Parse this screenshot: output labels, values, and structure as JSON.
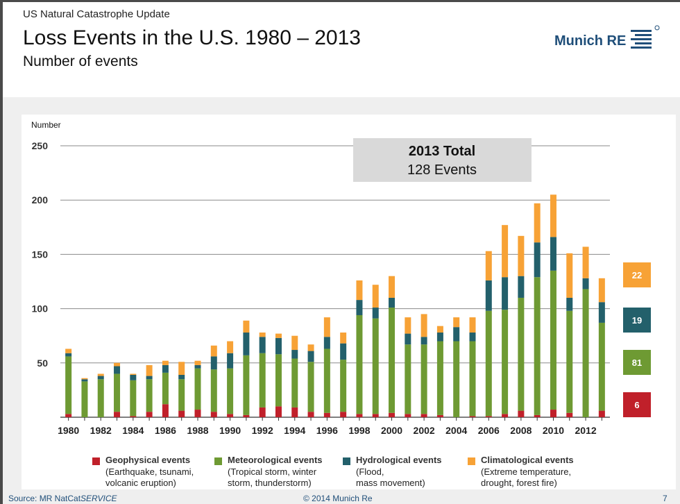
{
  "header": {
    "supertitle": "US Natural Catastrophe Update",
    "title": "Loss Events in the U.S. 1980 – 2013",
    "subtitle": "Number of events",
    "logo_text": "Munich RE"
  },
  "footer": {
    "source_prefix": "Source: MR NatCat",
    "source_italic": "SERVICE",
    "copyright": "© 2014 Munich Re",
    "page": "7"
  },
  "colors": {
    "geophysical": "#c0202a",
    "meteorological": "#6e9a33",
    "hydrological": "#23606b",
    "climatological": "#f7a236"
  },
  "total_box": {
    "title": "2013 Total",
    "sub": "128 Events"
  },
  "badges": [
    {
      "series": "climatological",
      "value": "22"
    },
    {
      "series": "hydrological",
      "value": "19"
    },
    {
      "series": "meteorological",
      "value": "81"
    },
    {
      "series": "geophysical",
      "value": "6"
    }
  ],
  "legend": [
    {
      "series": "geophysical",
      "title": "Geophysical events",
      "lines": [
        "(Earthquake, tsunami,",
        "volcanic eruption)"
      ]
    },
    {
      "series": "meteorological",
      "title": "Meteorological events",
      "lines": [
        "(Tropical storm, winter",
        "storm, thunderstorm)"
      ]
    },
    {
      "series": "hydrological",
      "title": "Hydrological events",
      "lines": [
        "(Flood,",
        "mass movement)"
      ]
    },
    {
      "series": "climatological",
      "title": "Climatological events",
      "lines": [
        "(Extreme temperature,",
        "drought, forest fire)"
      ]
    }
  ],
  "chart_data": {
    "type": "bar",
    "stacked": true,
    "ylabel": "Number",
    "ylim": [
      0,
      250
    ],
    "yticks": [
      50,
      100,
      150,
      200,
      250
    ],
    "grid": true,
    "categories": [
      1980,
      1981,
      1982,
      1983,
      1984,
      1985,
      1986,
      1987,
      1988,
      1989,
      1990,
      1991,
      1992,
      1993,
      1994,
      1995,
      1996,
      1997,
      1998,
      1999,
      2000,
      2001,
      2002,
      2003,
      2004,
      2005,
      2006,
      2007,
      2008,
      2009,
      2010,
      2011,
      2012,
      2013
    ],
    "xtick_labels": [
      "1980",
      "1982",
      "1984",
      "1986",
      "1988",
      "1990",
      "1992",
      "1994",
      "1996",
      "1998",
      "2000",
      "2002",
      "2004",
      "2006",
      "2008",
      "2010",
      "2012"
    ],
    "series": [
      {
        "name": "Geophysical events",
        "key": "geophysical",
        "values": [
          3,
          0,
          0,
          5,
          1,
          5,
          12,
          6,
          7,
          5,
          3,
          2,
          9,
          10,
          9,
          5,
          4,
          5,
          3,
          3,
          4,
          3,
          3,
          2,
          0,
          1,
          1,
          3,
          6,
          2,
          7,
          4,
          0,
          6
        ]
      },
      {
        "name": "Meteorological events",
        "key": "meteorological",
        "values": [
          53,
          33,
          35,
          35,
          33,
          30,
          29,
          29,
          38,
          39,
          42,
          55,
          50,
          48,
          45,
          46,
          59,
          48,
          91,
          88,
          97,
          64,
          64,
          68,
          70,
          69,
          97,
          96,
          104,
          127,
          128,
          94,
          118,
          81
        ]
      },
      {
        "name": "Hydrological events",
        "key": "hydrological",
        "values": [
          3,
          2,
          3,
          7,
          5,
          3,
          7,
          4,
          3,
          12,
          14,
          21,
          15,
          15,
          8,
          10,
          11,
          15,
          14,
          10,
          9,
          10,
          7,
          8,
          13,
          8,
          28,
          30,
          20,
          32,
          31,
          12,
          10,
          19
        ]
      },
      {
        "name": "Climatological events",
        "key": "climatological",
        "values": [
          4,
          1,
          2,
          3,
          1,
          10,
          4,
          12,
          4,
          10,
          11,
          11,
          4,
          4,
          13,
          6,
          18,
          10,
          18,
          21,
          20,
          15,
          21,
          6,
          9,
          14,
          27,
          48,
          37,
          36,
          39,
          41,
          29,
          22
        ]
      }
    ]
  }
}
